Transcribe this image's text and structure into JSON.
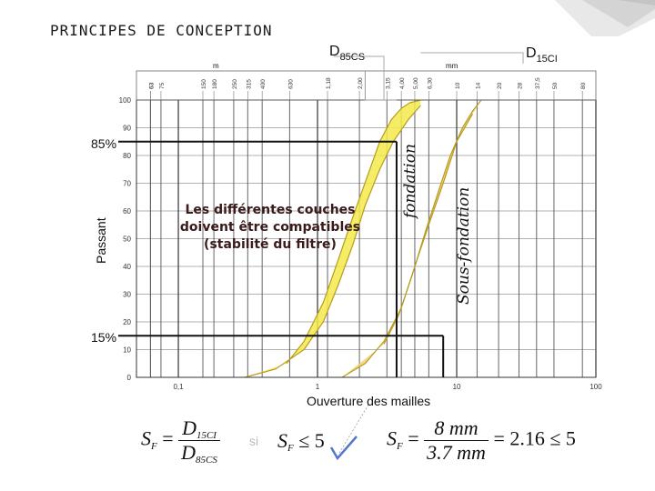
{
  "page": {
    "title": "PRINCIPES DE CONCEPTION"
  },
  "chart_data": {
    "type": "line",
    "xscale": "log",
    "xlim": [
      0.05,
      100
    ],
    "ylim": [
      0,
      100
    ],
    "x_ticks": [
      "0,1",
      "1",
      "10",
      "100"
    ],
    "y_ticks": [
      "0",
      "10",
      "20",
      "30",
      "40",
      "50",
      "60",
      "70",
      "80",
      "90",
      "100"
    ],
    "top_ticks": [
      "63",
      "75",
      "150",
      "180",
      "250",
      "315",
      "400",
      "630",
      "1,18",
      "2,00",
      "3,15",
      "4,00",
      "5,00",
      "6,30",
      "10",
      "14",
      "20",
      "28",
      "37,5",
      "50",
      "63",
      "80"
    ],
    "top_units": [
      "m",
      "mm"
    ],
    "xlabel": "Ouverture des mailles",
    "ylabel": "Passant",
    "series": [
      {
        "name": "fondation",
        "color": "#f2ea4a",
        "lower": {
          "x": [
            0.3,
            0.5,
            0.8,
            1.1,
            1.4,
            1.8,
            2.2,
            2.8,
            3.5,
            4.5,
            5.5
          ],
          "y": [
            0,
            3,
            10,
            20,
            33,
            48,
            62,
            75,
            85,
            93,
            98
          ]
        },
        "upper": {
          "x": [
            0.6,
            0.8,
            1.1,
            1.4,
            1.8,
            2.3,
            2.8,
            3.4,
            4.0,
            4.6,
            5.5
          ],
          "y": [
            5,
            13,
            27,
            42,
            58,
            73,
            85,
            93,
            97,
            99,
            100
          ]
        }
      },
      {
        "name": "Sous-fondation",
        "color": "#f4cf6a",
        "lower": {
          "x": [
            1.5,
            2.2,
            3.0,
            4.0,
            5.0,
            6.3,
            8.0,
            10,
            13
          ],
          "y": [
            0,
            5,
            13,
            25,
            40,
            55,
            70,
            85,
            95
          ]
        },
        "upper": {
          "x": [
            3.0,
            3.8,
            4.8,
            6.0,
            7.5,
            9.0,
            11,
            13,
            15
          ],
          "y": [
            12,
            22,
            37,
            53,
            68,
            80,
            90,
            96,
            100
          ]
        }
      }
    ],
    "markers": [
      {
        "label": "85%",
        "y": 85,
        "x_end": 3.7
      },
      {
        "label": "15%",
        "y": 15,
        "x_end": 8
      }
    ],
    "callouts": [
      {
        "label": "D",
        "sub": "85CS",
        "x": 3.7
      },
      {
        "label": "D",
        "sub": "15CI",
        "x": 8
      }
    ],
    "annotation": [
      "Les différentes couches",
      "doivent être compatibles",
      "(stabilité du filtre)"
    ]
  },
  "formula": {
    "lhs": "S",
    "lhs_sub": "F",
    "num": "D",
    "num_sub": "15CI",
    "den": "D",
    "den_sub": "85CS",
    "si": "si",
    "cond": "≤ 5",
    "num2": "8 mm",
    "den2": "3.7 mm",
    "result": "= 2.16 ≤ 5"
  }
}
